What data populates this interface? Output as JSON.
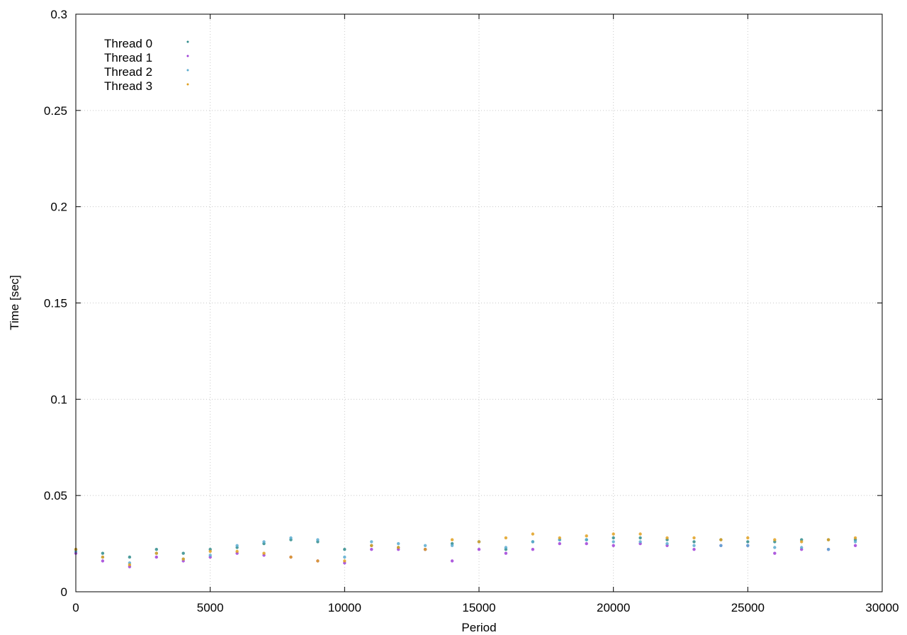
{
  "chart_data": {
    "type": "scatter",
    "xlabel": "Period",
    "ylabel": "Time [sec]",
    "xlim": [
      0,
      30000
    ],
    "ylim": [
      0,
      0.3
    ],
    "x_ticks": [
      0,
      5000,
      10000,
      15000,
      20000,
      25000,
      30000
    ],
    "y_ticks": [
      0,
      0.05,
      0.1,
      0.15,
      0.2,
      0.25,
      0.3
    ],
    "x_tick_labels": [
      "0",
      "5000",
      "10000",
      "15000",
      "20000",
      "25000",
      "30000"
    ],
    "y_tick_labels": [
      "0",
      "0.05",
      "0.1",
      "0.15",
      "0.2",
      "0.25",
      "0.3"
    ],
    "grid": true,
    "legend_position": "top-left",
    "series": [
      {
        "name": "Thread 0",
        "color": "#2e8b8b",
        "x": [
          0,
          1000,
          2000,
          3000,
          4000,
          5000,
          6000,
          7000,
          8000,
          9000,
          10000,
          11000,
          12000,
          13000,
          14000,
          15000,
          16000,
          17000,
          18000,
          19000,
          20000,
          21000,
          22000,
          23000,
          24000,
          25000,
          26000,
          27000,
          28000,
          29000
        ],
        "values": [
          0.022,
          0.02,
          0.018,
          0.022,
          0.02,
          0.022,
          0.023,
          0.025,
          0.027,
          0.026,
          0.022,
          0.024,
          0.023,
          0.022,
          0.025,
          0.026,
          0.022,
          0.026,
          0.027,
          0.027,
          0.028,
          0.028,
          0.027,
          0.026,
          0.027,
          0.026,
          0.026,
          0.027,
          0.027,
          0.027
        ]
      },
      {
        "name": "Thread 1",
        "color": "#a040d8",
        "x": [
          0,
          1000,
          2000,
          3000,
          4000,
          5000,
          6000,
          7000,
          8000,
          9000,
          10000,
          11000,
          12000,
          13000,
          14000,
          15000,
          16000,
          17000,
          18000,
          19000,
          20000,
          21000,
          22000,
          23000,
          24000,
          25000,
          26000,
          27000,
          28000,
          29000
        ],
        "values": [
          0.02,
          0.016,
          0.013,
          0.018,
          0.016,
          0.018,
          0.02,
          0.019,
          0.018,
          0.016,
          0.015,
          0.022,
          0.022,
          0.022,
          0.016,
          0.022,
          0.02,
          0.022,
          0.025,
          0.025,
          0.024,
          0.025,
          0.024,
          0.022,
          0.024,
          0.024,
          0.02,
          0.022,
          0.022,
          0.024
        ]
      },
      {
        "name": "Thread 2",
        "color": "#5bacd0",
        "x": [
          0,
          1000,
          2000,
          3000,
          4000,
          5000,
          6000,
          7000,
          8000,
          9000,
          10000,
          11000,
          12000,
          13000,
          14000,
          15000,
          16000,
          17000,
          18000,
          19000,
          20000,
          21000,
          22000,
          23000,
          24000,
          25000,
          26000,
          27000,
          28000,
          29000
        ],
        "values": [
          0.021,
          0.018,
          0.015,
          0.02,
          0.017,
          0.019,
          0.024,
          0.026,
          0.028,
          0.027,
          0.018,
          0.026,
          0.025,
          0.024,
          0.024,
          0.026,
          0.023,
          0.026,
          0.027,
          0.027,
          0.026,
          0.026,
          0.025,
          0.024,
          0.024,
          0.024,
          0.023,
          0.023,
          0.022,
          0.026
        ]
      },
      {
        "name": "Thread 3",
        "color": "#e0a020",
        "x": [
          0,
          1000,
          2000,
          3000,
          4000,
          5000,
          6000,
          7000,
          8000,
          9000,
          10000,
          11000,
          12000,
          13000,
          14000,
          15000,
          16000,
          17000,
          18000,
          19000,
          20000,
          21000,
          22000,
          23000,
          24000,
          25000,
          26000,
          27000,
          28000,
          29000
        ],
        "values": [
          0.022,
          0.018,
          0.014,
          0.02,
          0.017,
          0.021,
          0.021,
          0.02,
          0.018,
          0.016,
          0.016,
          0.024,
          0.023,
          0.022,
          0.027,
          0.026,
          0.028,
          0.03,
          0.028,
          0.029,
          0.03,
          0.03,
          0.028,
          0.028,
          0.027,
          0.028,
          0.027,
          0.026,
          0.027,
          0.028
        ]
      }
    ]
  }
}
